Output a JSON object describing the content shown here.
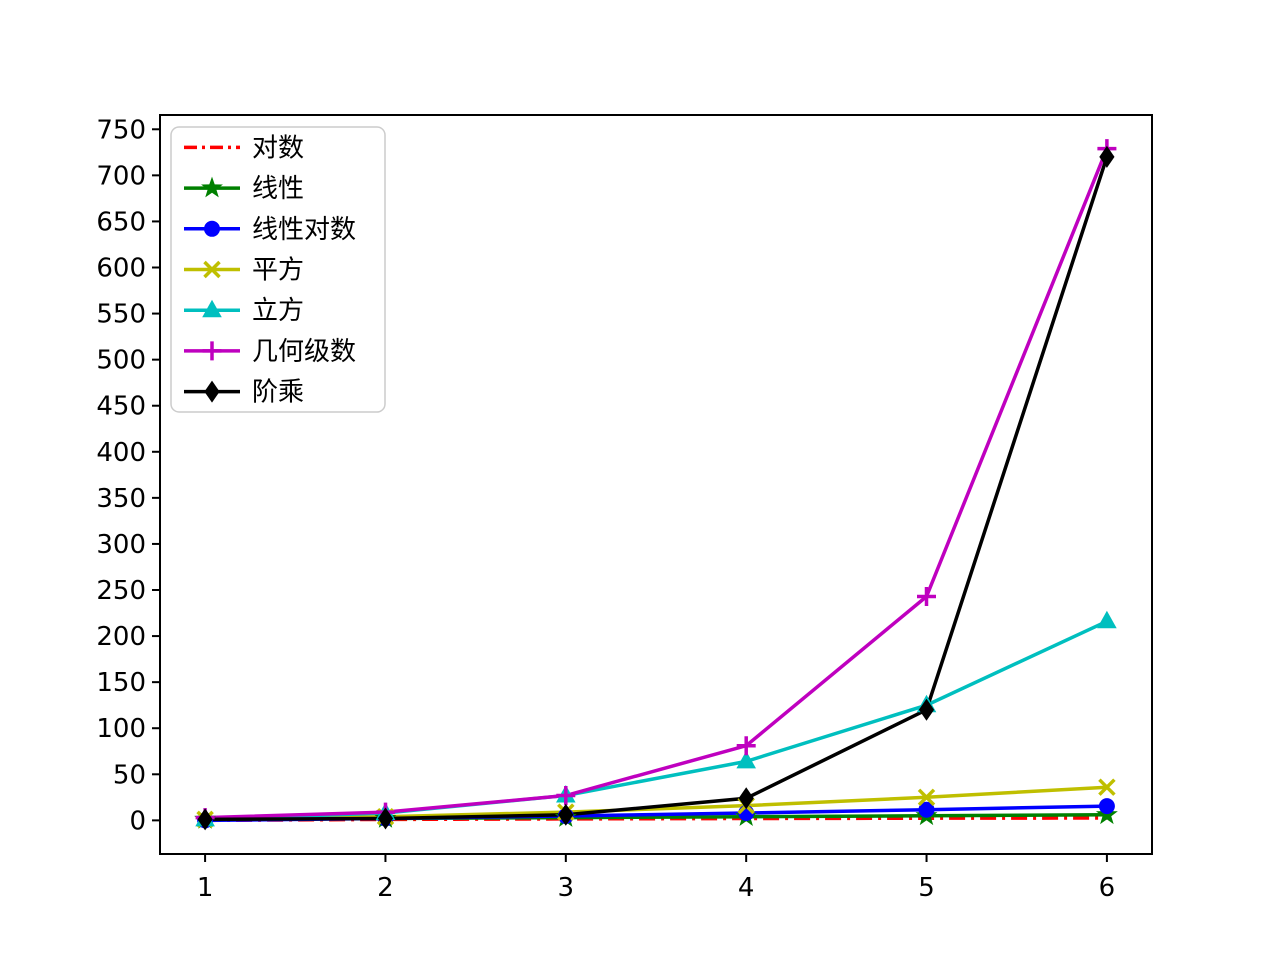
{
  "chart_data": {
    "type": "line",
    "title": "",
    "xlabel": "",
    "ylabel": "",
    "grid": false,
    "legend_position": "upper-left",
    "x": [
      1,
      2,
      3,
      4,
      5,
      6
    ],
    "xlim": [
      0.75,
      6.25
    ],
    "ylim": [
      -36.5,
      765.5
    ],
    "xticks": [
      1,
      2,
      3,
      4,
      5,
      6
    ],
    "yticks": [
      0,
      50,
      100,
      150,
      200,
      250,
      300,
      350,
      400,
      450,
      500,
      550,
      600,
      650,
      700,
      750
    ],
    "series": [
      {
        "name": "对数",
        "values": [
          0,
          1,
          1.58,
          2,
          2.32,
          2.58
        ],
        "color": "#ff0000",
        "linestyle": "dashdot",
        "marker": "none"
      },
      {
        "name": "线性",
        "values": [
          1,
          2,
          3,
          4,
          5,
          6
        ],
        "color": "#008000",
        "linestyle": "solid",
        "marker": "star"
      },
      {
        "name": "线性对数",
        "values": [
          0,
          2,
          4.75,
          8,
          11.61,
          15.51
        ],
        "color": "#0000ff",
        "linestyle": "solid",
        "marker": "circle"
      },
      {
        "name": "平方",
        "values": [
          1,
          4,
          9,
          16,
          25,
          36
        ],
        "color": "#bfbf00",
        "linestyle": "solid",
        "marker": "x"
      },
      {
        "name": "立方",
        "values": [
          1,
          8,
          27,
          64,
          125,
          216
        ],
        "color": "#00bfbf",
        "linestyle": "solid",
        "marker": "triangle"
      },
      {
        "name": "几何级数",
        "values": [
          3,
          9,
          27,
          81,
          243,
          729
        ],
        "color": "#bf00bf",
        "linestyle": "solid",
        "marker": "plus"
      },
      {
        "name": "阶乘",
        "values": [
          1,
          2,
          6,
          24,
          120,
          720
        ],
        "color": "#000000",
        "linestyle": "solid",
        "marker": "diamond"
      }
    ]
  },
  "axis": {
    "frame_color": "#000000",
    "tick_color": "#000000",
    "background": "#ffffff"
  },
  "legend": {
    "background": "#ffffff",
    "border_color": "#cccccc"
  }
}
